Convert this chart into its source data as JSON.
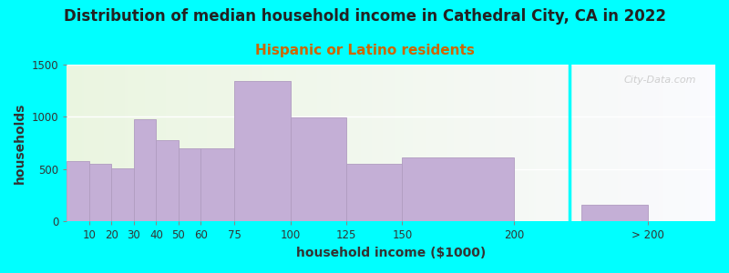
{
  "title": "Distribution of median household income in Cathedral City, CA in 2022",
  "subtitle": "Hispanic or Latino residents",
  "xlabel": "household income ($1000)",
  "ylabel": "households",
  "background_color": "#00FFFF",
  "bar_color": "#c4afd6",
  "bar_edge_color": "#b09cc0",
  "watermark": "City-Data.com",
  "title_fontsize": 12,
  "subtitle_fontsize": 11,
  "subtitle_color": "#cc6600",
  "axis_label_fontsize": 10,
  "tick_fontsize": 8.5,
  "title_color": "#222222",
  "ylim": [
    0,
    1500
  ],
  "yticks": [
    0,
    500,
    1000,
    1500
  ],
  "bar_lefts": [
    0,
    10,
    20,
    30,
    40,
    50,
    60,
    75,
    100,
    125,
    150,
    230
  ],
  "bar_widths": [
    10,
    10,
    10,
    10,
    10,
    10,
    15,
    25,
    25,
    25,
    50,
    30
  ],
  "bar_heights": [
    580,
    555,
    510,
    975,
    775,
    700,
    700,
    1340,
    995,
    550,
    610,
    160
  ],
  "xtick_positions": [
    10,
    20,
    30,
    40,
    50,
    60,
    75,
    100,
    125,
    150,
    200,
    260
  ],
  "xtick_labels": [
    "10",
    "20",
    "30",
    "40",
    "50",
    "60",
    "75",
    "100",
    "125",
    "150",
    "200",
    "> 200"
  ],
  "separator_x": 225,
  "xlim_left": 0,
  "xlim_right": 290
}
